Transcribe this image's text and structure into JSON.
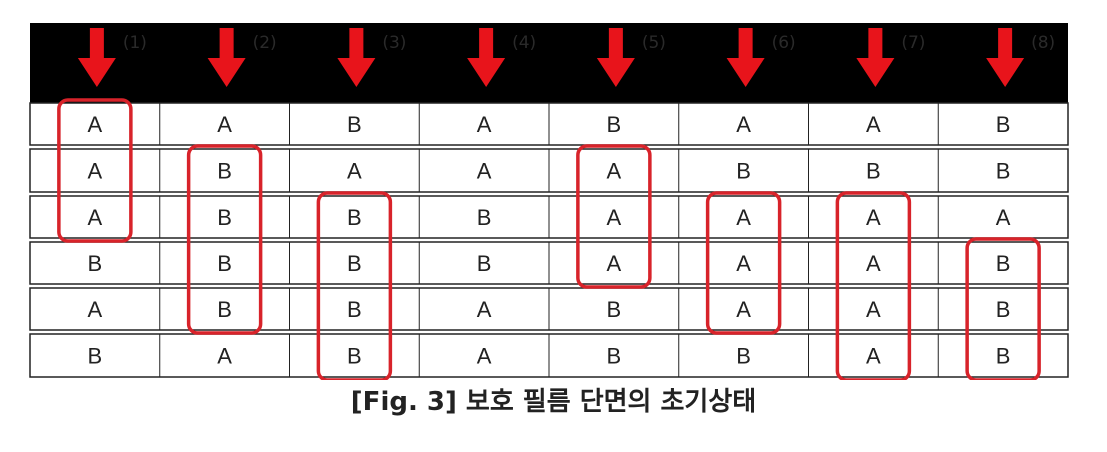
{
  "columns": [
    {
      "number": "(1)",
      "cells": [
        "A",
        "A",
        "A",
        "B",
        "A",
        "B"
      ],
      "highlight": [
        0,
        2
      ]
    },
    {
      "number": "(2)",
      "cells": [
        "A",
        "B",
        "B",
        "B",
        "B",
        "A"
      ],
      "highlight": [
        1,
        4
      ]
    },
    {
      "number": "(3)",
      "cells": [
        "B",
        "A",
        "B",
        "B",
        "B",
        "B"
      ],
      "highlight": [
        2,
        5
      ]
    },
    {
      "number": "(4)",
      "cells": [
        "A",
        "A",
        "B",
        "B",
        "A",
        "A"
      ],
      "highlight": null
    },
    {
      "number": "(5)",
      "cells": [
        "B",
        "A",
        "A",
        "A",
        "B",
        "B"
      ],
      "highlight": [
        1,
        3
      ]
    },
    {
      "number": "(6)",
      "cells": [
        "A",
        "B",
        "A",
        "A",
        "A",
        "B"
      ],
      "highlight": [
        2,
        4
      ]
    },
    {
      "number": "(7)",
      "cells": [
        "A",
        "B",
        "A",
        "A",
        "A",
        "A"
      ],
      "highlight": [
        2,
        5
      ]
    },
    {
      "number": "(8)",
      "cells": [
        "B",
        "B",
        "A",
        "B",
        "B",
        "B"
      ],
      "highlight": [
        3,
        5
      ]
    }
  ],
  "caption": "[Fig. 3] 보호 필름 단면의 초기상태",
  "colors": {
    "header_band": "#000000",
    "arrow": "#e8141b",
    "highlight_box": "#d8232a",
    "grid_line": "#222222"
  }
}
